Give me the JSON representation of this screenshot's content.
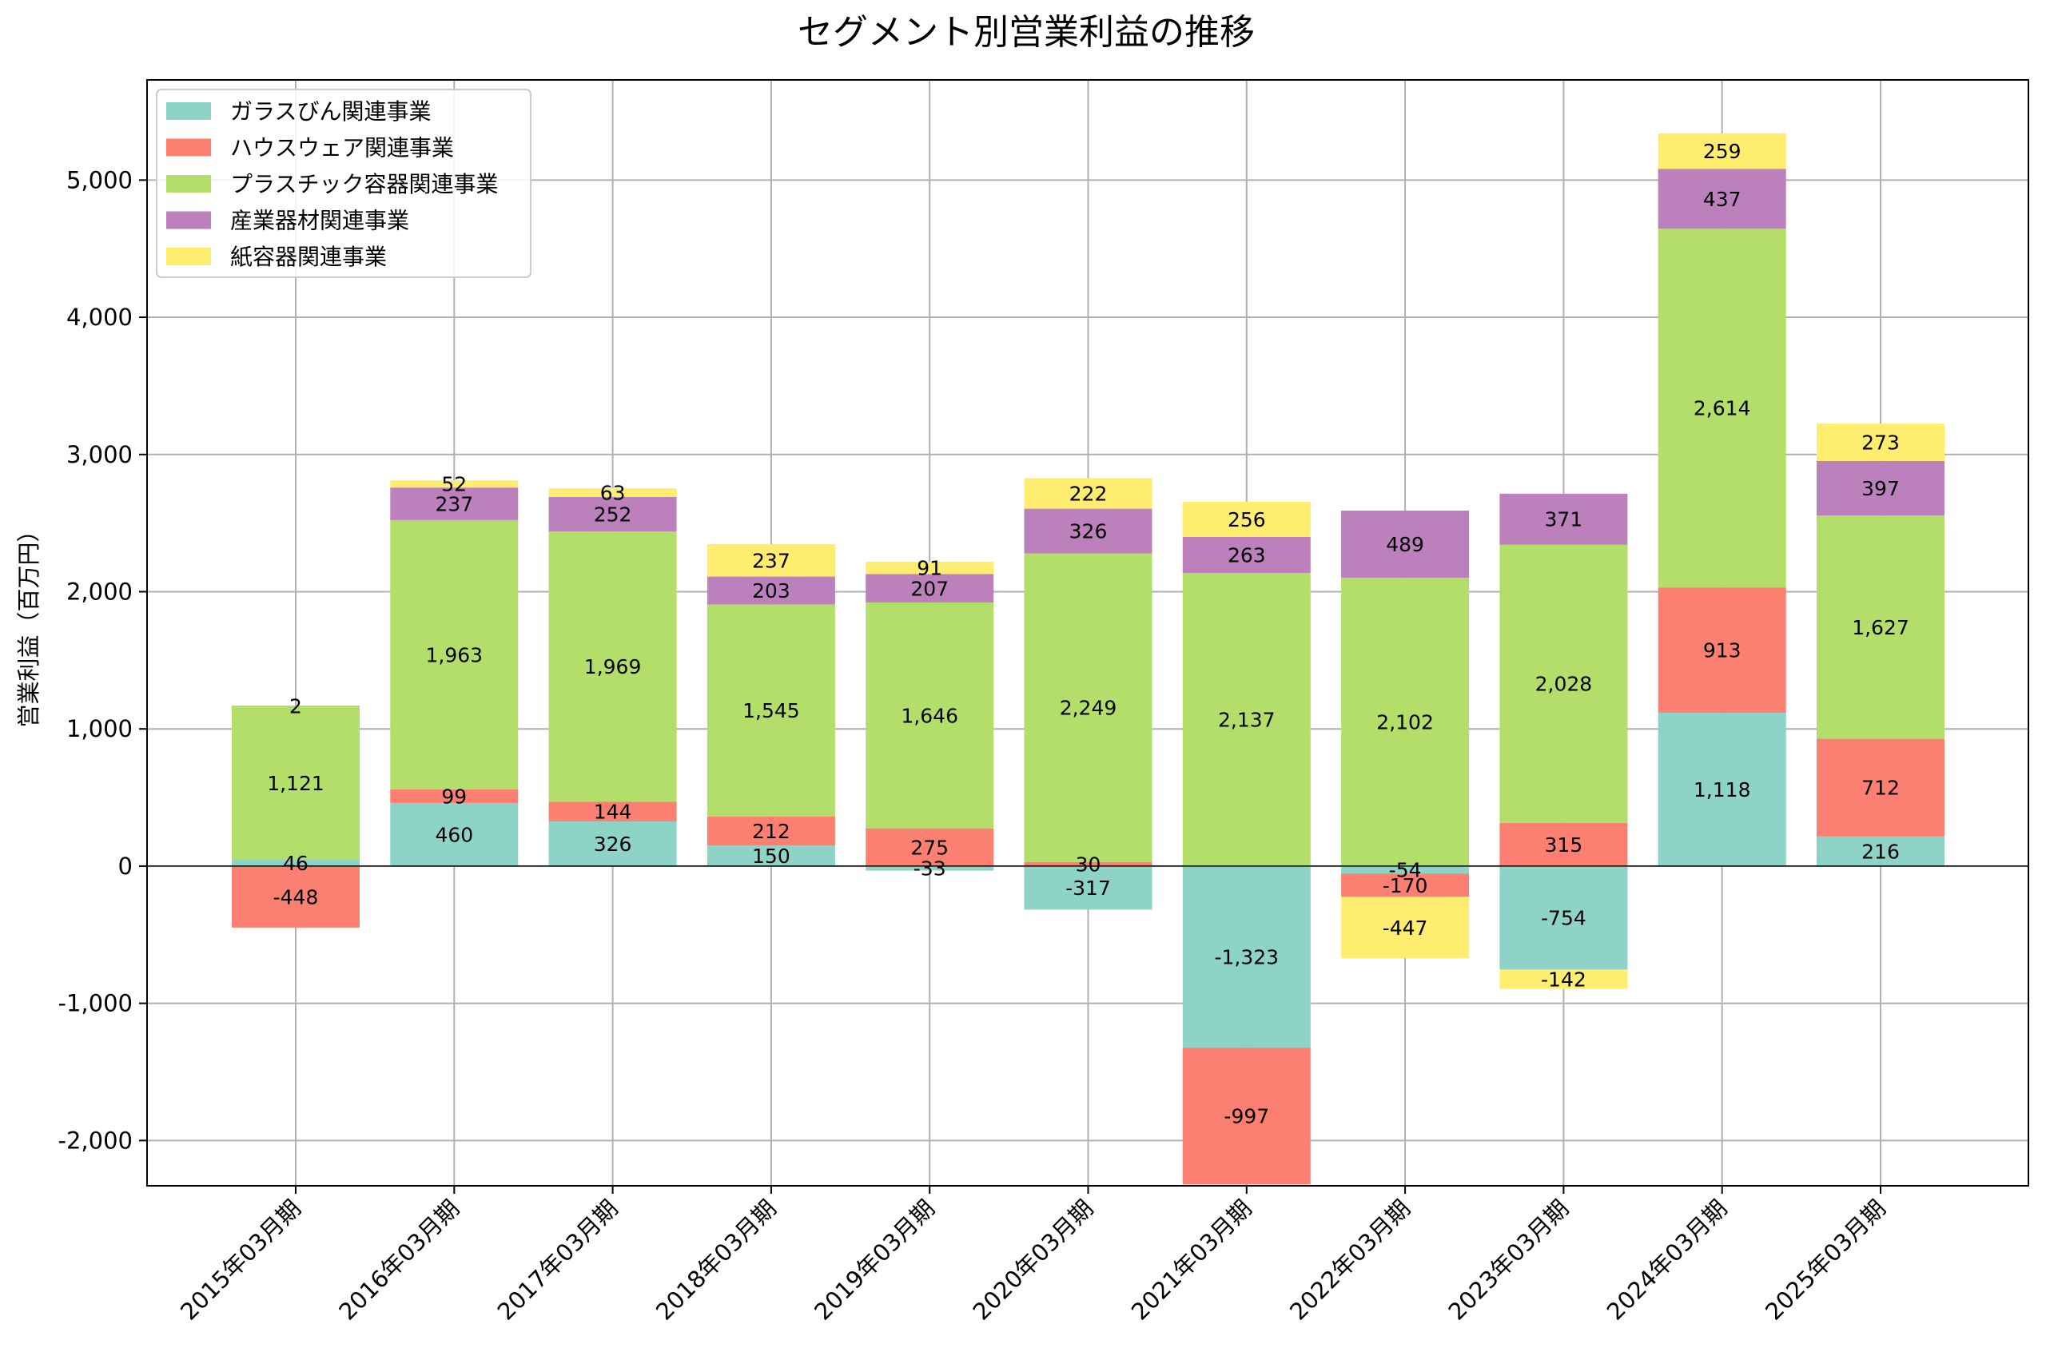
{
  "chart_data": {
    "type": "bar",
    "stacked": true,
    "title": "セグメント別営業利益の推移",
    "xlabel": "",
    "ylabel": "営業利益（百万円）",
    "ylim": [
      -2330,
      5730
    ],
    "yticks": [
      -2000,
      -1000,
      0,
      1000,
      2000,
      3000,
      4000,
      5000
    ],
    "ytick_labels": [
      "-2,000",
      "-1,000",
      "0",
      "1,000",
      "2,000",
      "3,000",
      "4,000",
      "5,000"
    ],
    "grid": true,
    "legend_position": "top-left",
    "categories": [
      "2015年03月期",
      "2016年03月期",
      "2017年03月期",
      "2018年03月期",
      "2019年03月期",
      "2020年03月期",
      "2021年03月期",
      "2022年03月期",
      "2023年03月期",
      "2024年03月期",
      "2025年03月期"
    ],
    "series": [
      {
        "name": "ガラスびん関連事業",
        "color": "#8dd3c7",
        "values": [
          46,
          460,
          326,
          150,
          -33,
          -317,
          -1323,
          -54,
          -754,
          1118,
          216
        ]
      },
      {
        "name": "ハウスウェア関連事業",
        "color": "#fb8072",
        "values": [
          -448,
          99,
          144,
          212,
          275,
          30,
          -997,
          -170,
          315,
          913,
          712
        ]
      },
      {
        "name": "プラスチック容器関連事業",
        "color": "#b3de69",
        "values": [
          1121,
          1963,
          1969,
          1545,
          1646,
          2249,
          2137,
          2102,
          2028,
          2614,
          1627
        ]
      },
      {
        "name": "産業器材関連事業",
        "color": "#bc80bd",
        "values": [
          2,
          237,
          252,
          203,
          207,
          326,
          263,
          489,
          371,
          437,
          397
        ]
      },
      {
        "name": "紙容器関連事業",
        "color": "#ffed6f",
        "values": [
          null,
          52,
          63,
          237,
          91,
          222,
          256,
          -447,
          -142,
          259,
          273
        ]
      }
    ]
  }
}
